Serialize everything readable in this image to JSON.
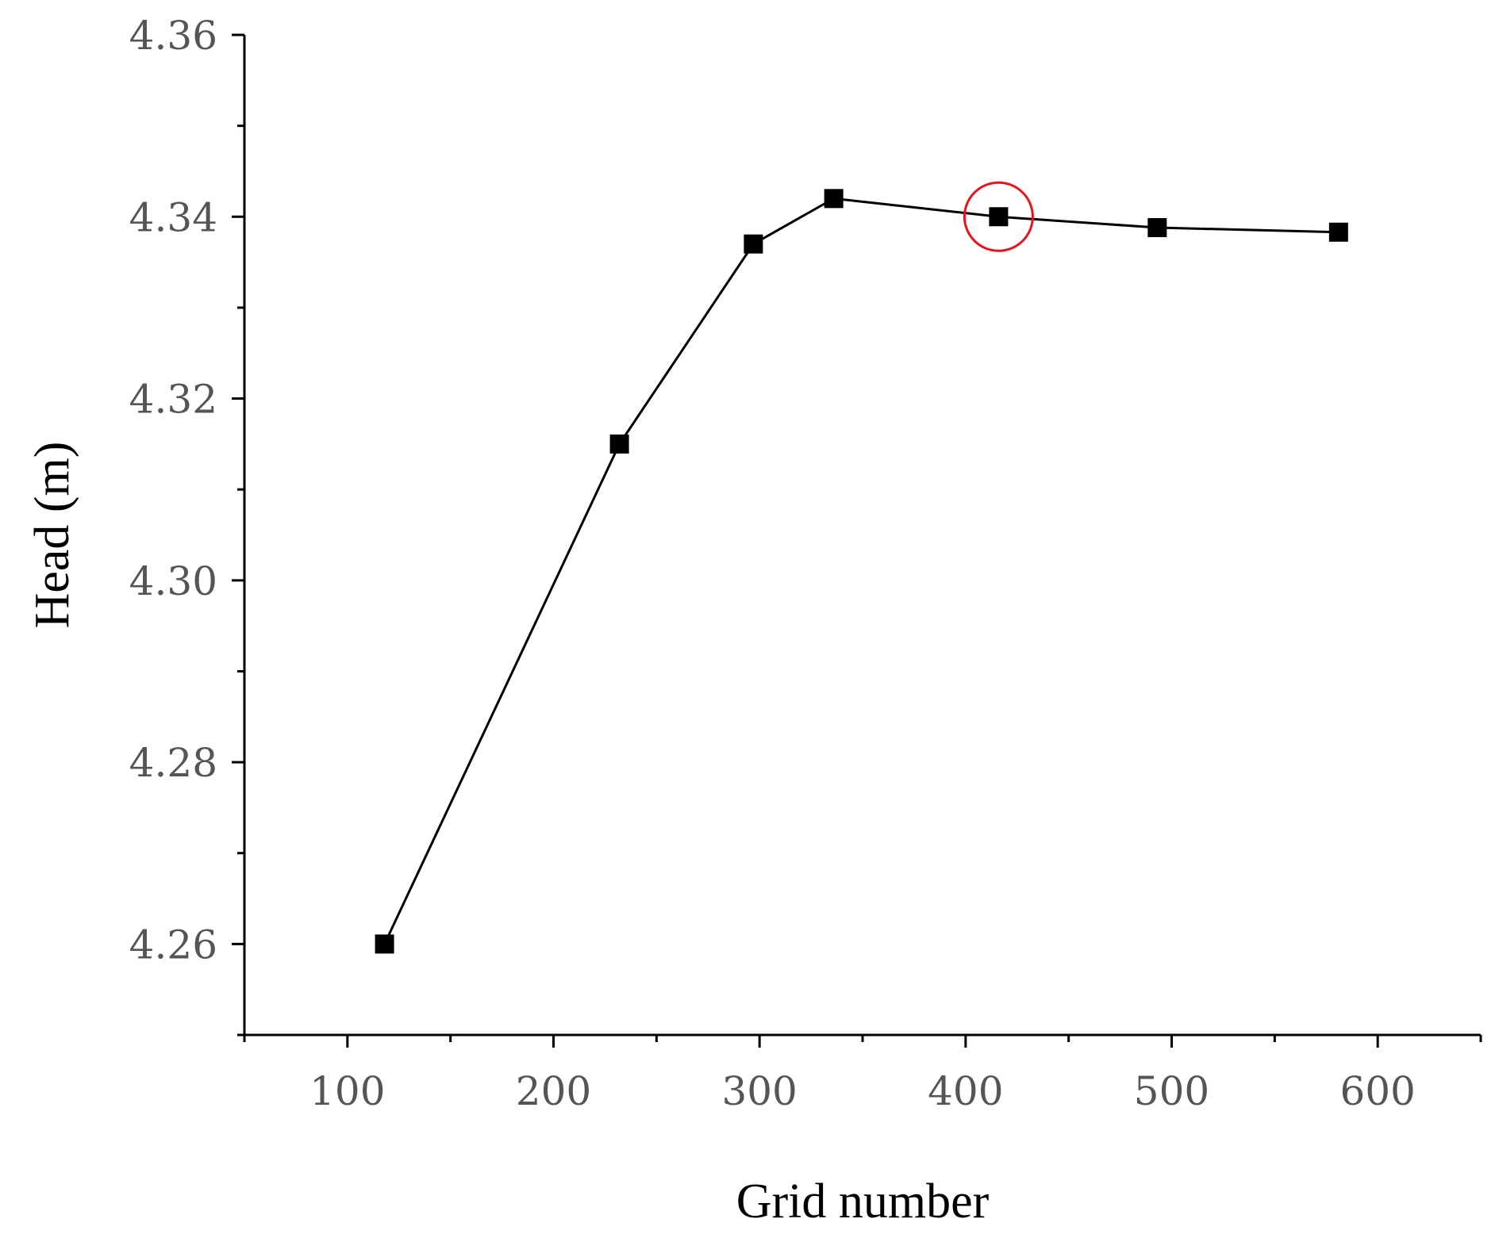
{
  "chart_data": {
    "type": "line",
    "title": "",
    "xlabel": "Grid number",
    "ylabel": "Head (m)",
    "xlim": [
      50,
      650
    ],
    "ylim": [
      4.25,
      4.36
    ],
    "xticks": [
      100,
      200,
      300,
      400,
      500,
      600
    ],
    "xtick_labels": [
      "100",
      "200",
      "300",
      "400",
      "500",
      "600"
    ],
    "yticks": [
      4.26,
      4.28,
      4.3,
      4.32,
      4.34,
      4.36
    ],
    "ytick_labels": [
      "4.26",
      "4.28",
      "4.30",
      "4.32",
      "4.34",
      "4.36"
    ],
    "grid": false,
    "marker": "square",
    "series": [
      {
        "x": [
          118,
          232,
          297,
          336,
          416,
          493,
          581
        ],
        "y": [
          4.26,
          4.315,
          4.337,
          4.342,
          4.34,
          4.3388,
          4.3383
        ]
      }
    ],
    "highlighted_point": {
      "x": 416,
      "y": 4.34,
      "color": "#e8141c"
    }
  }
}
